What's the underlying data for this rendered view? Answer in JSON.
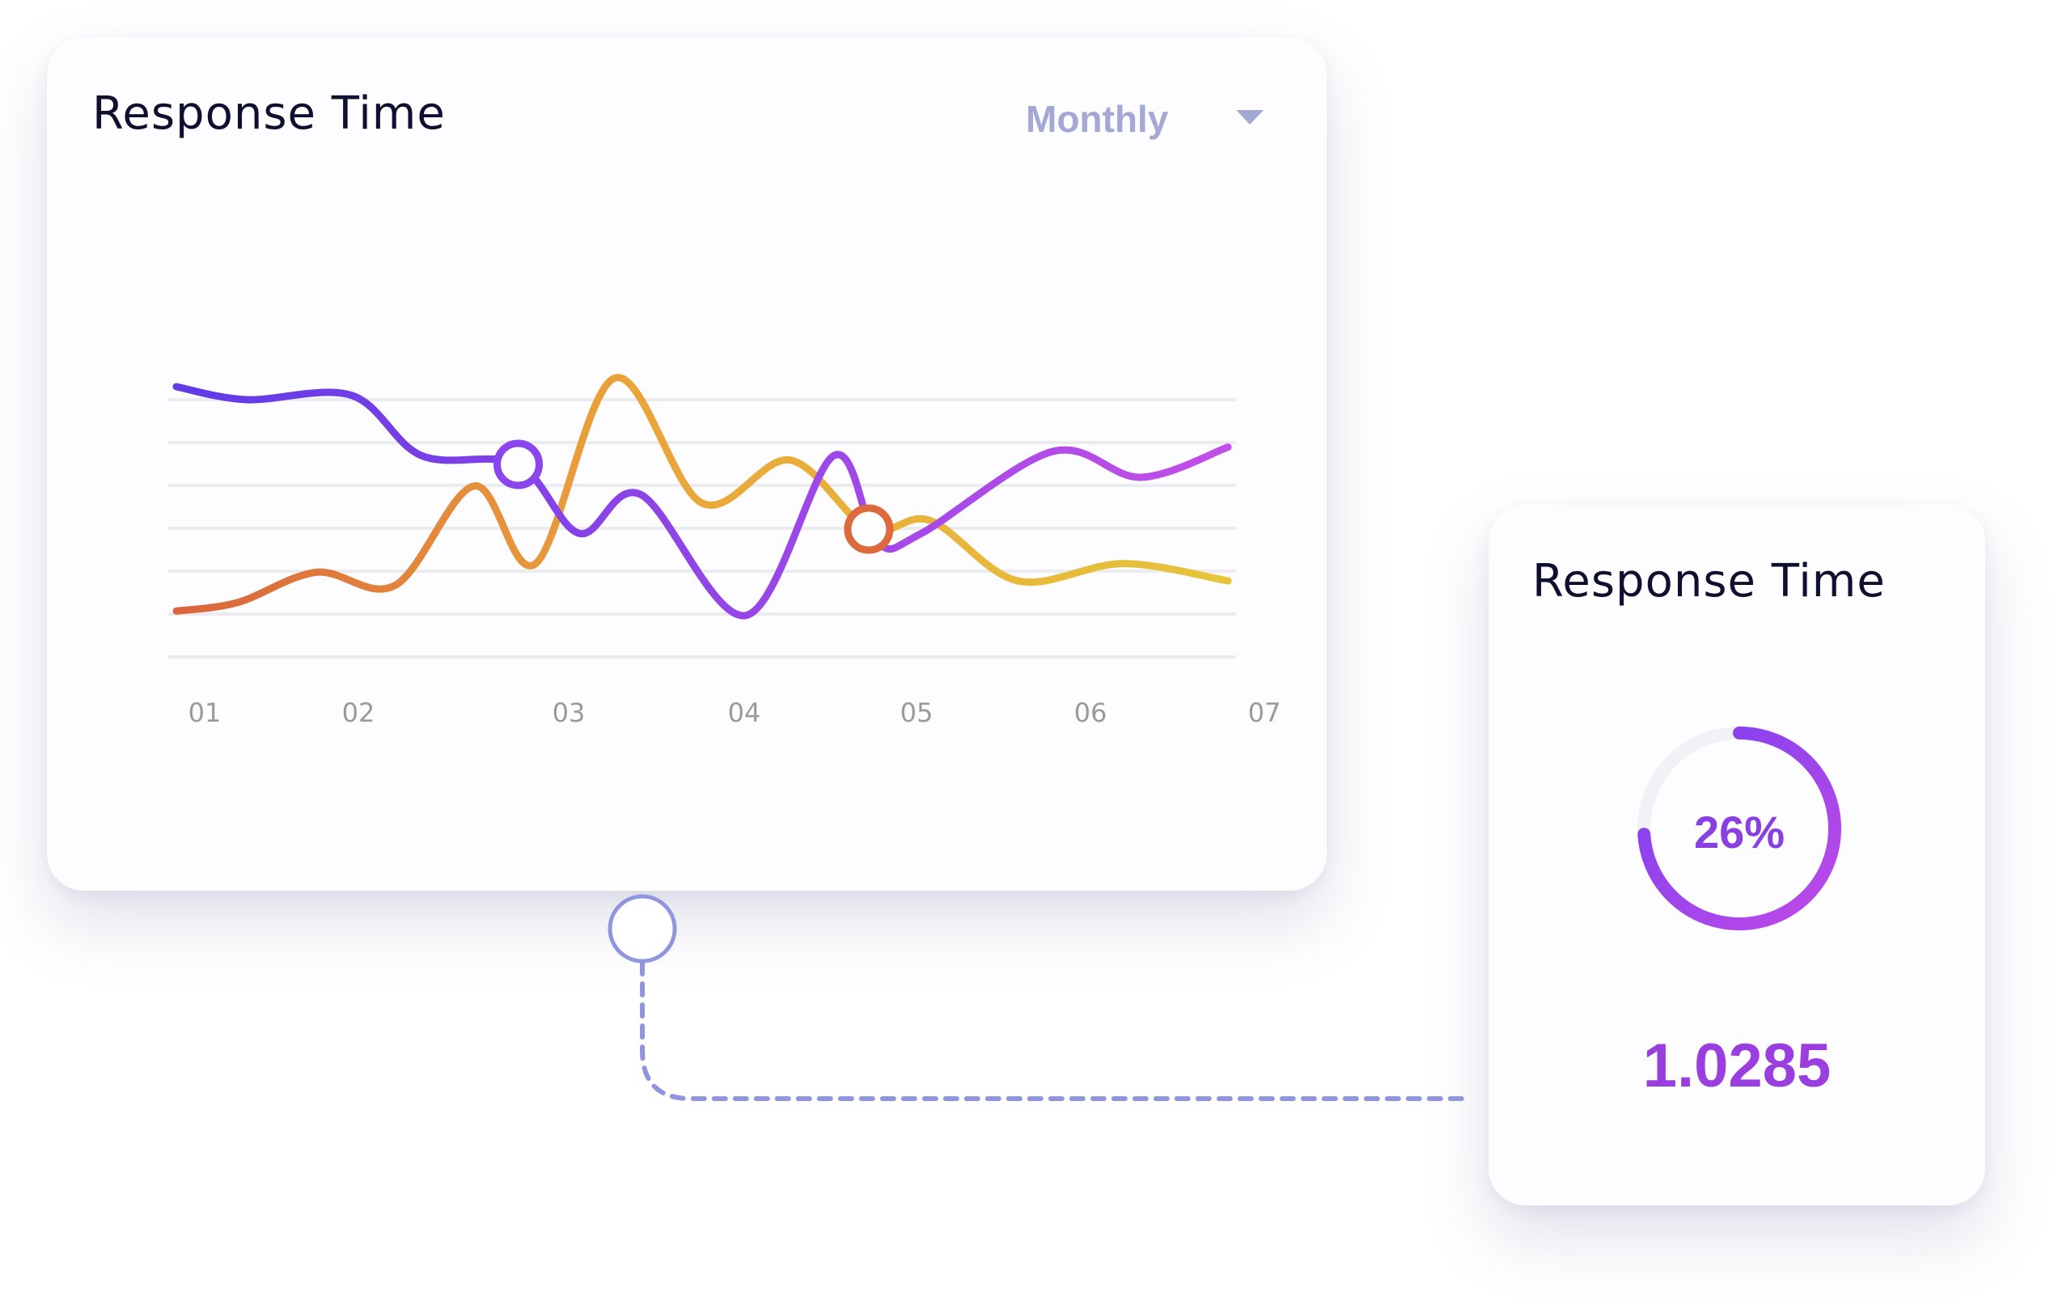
{
  "main_card": {
    "title": "Response Time",
    "period_select": {
      "selected": "Monthly",
      "icon": "chevron-down-icon"
    }
  },
  "side_card": {
    "title": "Response Time",
    "gauge_percent_label": "26%",
    "gauge_fraction": 0.74,
    "metric_value": "1.0285"
  },
  "colors": {
    "grid": "#ececf0",
    "tick_text": "#9a9a9a",
    "connector": "#8f96df",
    "gauge_track": "#f1f1f6",
    "gauge_from": "#c04ae8",
    "gauge_to": "#7a3ff0"
  },
  "chart_data": {
    "type": "line",
    "title": "",
    "xlabel": "",
    "ylabel": "",
    "categories": [
      "01",
      "02",
      "03",
      "04",
      "05",
      "06",
      "07"
    ],
    "grid": true,
    "ylim": [
      0,
      6
    ],
    "series": [
      {
        "key": "purple",
        "colors": [
          "#5e3ae6",
          "#c24fe8"
        ],
        "x": [
          1.0,
          1.4,
          2.0,
          2.4,
          2.95,
          3.3,
          3.65,
          4.25,
          4.75,
          5.0,
          5.25,
          6.0,
          6.5,
          7.0
        ],
        "y": [
          5.4,
          5.1,
          5.2,
          3.8,
          3.6,
          2.0,
          2.9,
          0.1,
          3.8,
          1.8,
          2.0,
          3.9,
          3.3,
          4.0
        ],
        "markers": [
          {
            "x": 2.95,
            "y": 3.6
          }
        ]
      },
      {
        "key": "orange",
        "colors": [
          "#d9603e",
          "#eaa43a",
          "#e6c43c"
        ],
        "x": [
          1.0,
          1.35,
          1.8,
          2.25,
          2.7,
          3.05,
          3.5,
          4.0,
          4.5,
          4.95,
          5.3,
          5.8,
          6.4,
          7.0
        ],
        "y": [
          0.2,
          0.4,
          1.1,
          0.8,
          3.1,
          1.3,
          5.6,
          2.7,
          3.7,
          2.1,
          2.3,
          0.9,
          1.3,
          0.9
        ],
        "markers": [
          {
            "x": 4.95,
            "y": 2.1
          }
        ]
      }
    ]
  }
}
